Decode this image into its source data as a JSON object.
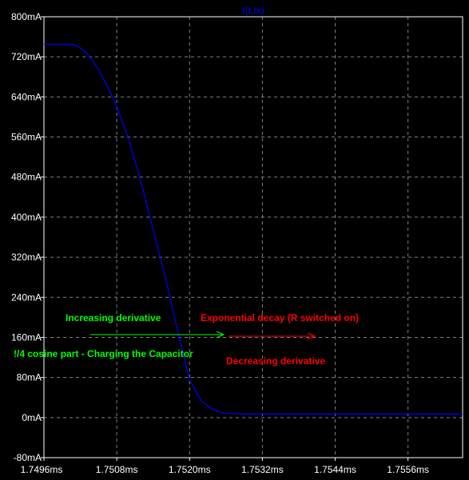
{
  "chart_data": {
    "type": "line",
    "title": "I(Ltx)",
    "x_unit": "ms",
    "y_unit": "mA",
    "xlim": [
      1.7496,
      1.7565
    ],
    "ylim": [
      -80,
      800
    ],
    "x_ticks": [
      1.7496,
      1.7508,
      1.752,
      1.7532,
      1.7544,
      1.7556
    ],
    "x_tick_labels": [
      "1.7496ms",
      "1.7508ms",
      "1.7520ms",
      "1.7532ms",
      "1.7544ms",
      "1.7556ms"
    ],
    "y_ticks": [
      -80,
      0,
      80,
      160,
      240,
      320,
      400,
      480,
      560,
      640,
      720,
      800
    ],
    "y_tick_labels": [
      "-80mA",
      "0mA",
      "80mA",
      "160mA",
      "240mA",
      "320mA",
      "400mA",
      "480mA",
      "560mA",
      "640mA",
      "720mA",
      "800mA"
    ],
    "grid": true,
    "series": [
      {
        "name": "I(Ltx)",
        "color": "#0000ff",
        "x": [
          1.7496,
          1.75,
          1.7501,
          1.7502,
          1.7503,
          1.7504,
          1.7505,
          1.7506,
          1.7507,
          1.7508,
          1.751,
          1.7512,
          1.7514,
          1.7516,
          1.7518,
          1.752,
          1.7522,
          1.7524,
          1.7525,
          1.7526,
          1.7527,
          1.7528,
          1.7529,
          1.753,
          1.7532,
          1.7534,
          1.7536,
          1.754,
          1.755,
          1.7565
        ],
        "y": [
          745,
          745,
          744,
          738,
          728,
          712,
          695,
          672,
          648,
          620,
          555,
          470,
          375,
          280,
          175,
          75,
          32,
          15,
          11,
          9,
          8,
          7.5,
          7,
          7,
          7,
          7,
          7,
          7,
          7,
          7
        ]
      }
    ],
    "annotations": [
      {
        "text": "Increasing derivative",
        "color": "#00ff00"
      },
      {
        "text": "Exponential decay (R switched on)",
        "color": "#ff0000"
      },
      {
        "text": "!/4 cosine part - Charging the Capacitor",
        "color": "#00ff00"
      },
      {
        "text": "Decreasing derivative",
        "color": "#ff0000"
      }
    ]
  }
}
